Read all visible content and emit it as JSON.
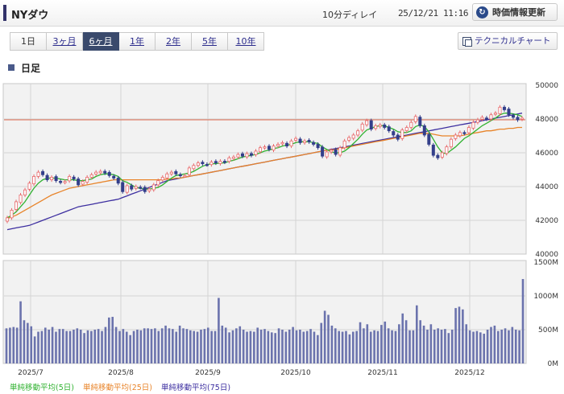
{
  "header": {
    "title": "NYダウ",
    "delay_text": "10分ディレイ",
    "timestamp": "25/12/21 11:16",
    "refresh_label": "時価情報更新"
  },
  "period_tabs": [
    {
      "label": "1日",
      "active": false
    },
    {
      "label": "3ヶ月",
      "active": false
    },
    {
      "label": "6ヶ月",
      "active": true
    },
    {
      "label": "1年",
      "active": false
    },
    {
      "label": "2年",
      "active": false
    },
    {
      "label": "5年",
      "active": false
    },
    {
      "label": "10年",
      "active": false
    }
  ],
  "technical_chart_label": "テクニカルチャート",
  "section_label": "日足",
  "colors": {
    "up": "#e8686a",
    "down": "#333f8a",
    "ma5": "#31b231",
    "ma25": "#e8842a",
    "ma75": "#3d2fa0",
    "volume": "#6b73ad",
    "reference_line": "#e06b50"
  },
  "chart_data": [
    {
      "type": "candlestick",
      "ylim": [
        40000,
        50000
      ],
      "y_ticks": [
        "50000",
        "48000",
        "46000",
        "44000",
        "42000",
        "40000"
      ],
      "reference_value": 47950,
      "closes": [
        42150,
        42600,
        43100,
        43500,
        43800,
        44200,
        44600,
        44850,
        44700,
        44400,
        44550,
        44350,
        44250,
        44300,
        44600,
        44450,
        44100,
        44300,
        44550,
        44700,
        44850,
        44900,
        44800,
        44650,
        44500,
        44200,
        43700,
        44050,
        43850,
        44000,
        43950,
        43700,
        43850,
        44100,
        44350,
        44550,
        44750,
        44850,
        44750,
        44650,
        44650,
        45100,
        45250,
        45400,
        45350,
        45300,
        45450,
        45400,
        45500,
        45450,
        45700,
        45750,
        45900,
        45800,
        45950,
        45850,
        46100,
        46300,
        46350,
        46200,
        46400,
        46500,
        46600,
        46400,
        46700,
        46850,
        46600,
        46700,
        46650,
        46500,
        46300,
        45800,
        46050,
        46150,
        45900,
        46300,
        46700,
        46900,
        47050,
        47300,
        47700,
        47900,
        47400,
        47600,
        47650,
        47500,
        47300,
        47050,
        46800,
        47350,
        47500,
        47800,
        48150,
        47600,
        47050,
        46500,
        45850,
        45700,
        46000,
        46350,
        46800,
        47050,
        47200,
        47150,
        47500,
        47800,
        47950,
        48100,
        48000,
        48250,
        48350,
        48700,
        48550,
        48250,
        48100,
        47950,
        48050
      ],
      "ma5": [
        42150,
        42300,
        42500,
        42800,
        43100,
        43500,
        43900,
        44200,
        44400,
        44500,
        44500,
        44500,
        44450,
        44400,
        44400,
        44400,
        44350,
        44350,
        44400,
        44450,
        44600,
        44700,
        44750,
        44750,
        44700,
        44600,
        44350,
        44250,
        44100,
        43950,
        43900,
        43850,
        43850,
        43900,
        43950,
        44100,
        44300,
        44500,
        44650,
        44700,
        44750,
        44800,
        44900,
        45050,
        45200,
        45300,
        45350,
        45350,
        45400,
        45400,
        45500,
        45550,
        45650,
        45750,
        45800,
        45850,
        45900,
        46000,
        46100,
        46150,
        46250,
        46300,
        46400,
        46450,
        46500,
        46600,
        46650,
        46650,
        46650,
        46600,
        46550,
        46350,
        46200,
        46050,
        46000,
        46000,
        46100,
        46300,
        46550,
        46800,
        47100,
        47350,
        47450,
        47550,
        47600,
        47600,
        47500,
        47400,
        47250,
        47200,
        47200,
        47300,
        47550,
        47650,
        47550,
        47250,
        46800,
        46350,
        46000,
        45950,
        46150,
        46350,
        46600,
        46850,
        47000,
        47200,
        47400,
        47600,
        47750,
        47900,
        48050,
        48250,
        48350,
        48350,
        48300,
        48250,
        48150
      ],
      "ma25": [
        42100,
        42200,
        42300,
        42450,
        42600,
        42750,
        42900,
        43050,
        43200,
        43350,
        43500,
        43600,
        43700,
        43800,
        43900,
        43950,
        44000,
        44050,
        44100,
        44150,
        44200,
        44250,
        44300,
        44350,
        44400,
        44400,
        44400,
        44400,
        44400,
        44400,
        44400,
        44400,
        44400,
        44400,
        44400,
        44400,
        44450,
        44450,
        44500,
        44500,
        44550,
        44600,
        44650,
        44700,
        44750,
        44800,
        44850,
        44900,
        44950,
        45000,
        45050,
        45100,
        45150,
        45200,
        45250,
        45300,
        45350,
        45400,
        45450,
        45500,
        45550,
        45600,
        45650,
        45700,
        45750,
        45800,
        45850,
        45900,
        45950,
        46000,
        46050,
        46100,
        46150,
        46150,
        46200,
        46250,
        46300,
        46350,
        46400,
        46450,
        46500,
        46550,
        46600,
        46650,
        46700,
        46750,
        46800,
        46850,
        46900,
        46950,
        47000,
        47050,
        47100,
        47150,
        47150,
        47150,
        47100,
        47050,
        47000,
        47000,
        47000,
        47000,
        47000,
        47050,
        47100,
        47150,
        47200,
        47250,
        47300,
        47300,
        47350,
        47400,
        47400,
        47450,
        47450,
        47500,
        47500
      ],
      "ma75": [
        41450,
        41500,
        41550,
        41600,
        41650,
        41700,
        41800,
        41900,
        42000,
        42100,
        42200,
        42300,
        42400,
        42500,
        42600,
        42700,
        42800,
        42850,
        42900,
        42950,
        43000,
        43050,
        43100,
        43150,
        43200,
        43250,
        43350,
        43450,
        43550,
        43650,
        43750,
        43850,
        43950,
        44050,
        44150,
        44250,
        44350,
        44400,
        44450,
        44500,
        44550,
        44600,
        44650,
        44700,
        44750,
        44800,
        44850,
        44900,
        44950,
        45000,
        45050,
        45100,
        45150,
        45200,
        45250,
        45300,
        45350,
        45400,
        45450,
        45500,
        45550,
        45600,
        45650,
        45700,
        45750,
        45800,
        45850,
        45900,
        45950,
        46000,
        46050,
        46100,
        46150,
        46200,
        46250,
        46300,
        46350,
        46400,
        46450,
        46500,
        46550,
        46600,
        46650,
        46700,
        46750,
        46800,
        46850,
        46900,
        46950,
        47000,
        47050,
        47100,
        47150,
        47200,
        47250,
        47300,
        47350,
        47400,
        47450,
        47500,
        47550,
        47600,
        47650,
        47700,
        47750,
        47800,
        47850,
        47900,
        47950,
        48000,
        48050,
        48100,
        48150,
        48200,
        48250,
        48300,
        48350
      ]
    },
    {
      "type": "bar",
      "ylim": [
        0,
        1500
      ],
      "y_ticks": [
        "1500M",
        "1000M",
        "500M",
        "0M"
      ],
      "values": [
        520,
        530,
        540,
        530,
        920,
        640,
        600,
        550,
        400,
        470,
        480,
        530,
        500,
        540,
        470,
        510,
        510,
        480,
        480,
        500,
        520,
        500,
        450,
        490,
        480,
        500,
        510,
        480,
        540,
        680,
        690,
        540,
        480,
        510,
        470,
        420,
        480,
        500,
        490,
        520,
        520,
        510,
        520,
        480,
        520,
        560,
        520,
        510,
        470,
        560,
        520,
        510,
        490,
        480,
        470,
        500,
        510,
        530,
        480,
        480,
        970,
        560,
        530,
        460,
        490,
        520,
        550,
        500,
        470,
        480,
        470,
        530,
        500,
        510,
        480,
        460,
        450,
        520,
        500,
        470,
        500,
        540,
        490,
        500,
        470,
        480,
        510,
        470,
        420,
        600,
        780,
        720,
        560,
        520,
        480,
        470,
        480,
        430,
        470,
        480,
        610,
        520,
        580,
        470,
        490,
        480,
        570,
        620,
        520,
        490,
        480,
        580,
        740,
        640,
        490,
        490,
        860,
        640,
        560,
        500,
        580,
        500,
        520,
        500,
        510,
        450,
        500,
        820,
        840,
        800,
        580,
        490,
        470,
        480,
        460,
        440,
        500,
        540,
        560,
        480,
        500,
        520,
        490,
        540,
        500,
        490,
        1250
      ],
      "x_tick_labels": [
        "2025/7",
        "2025/8",
        "2025/9",
        "2025/10",
        "2025/11",
        "2025/12"
      ]
    }
  ],
  "legend": [
    {
      "label": "単純移動平均(5日)"
    },
    {
      "label": "単純移動平均(25日)"
    },
    {
      "label": "単純移動平均(75日)"
    }
  ]
}
